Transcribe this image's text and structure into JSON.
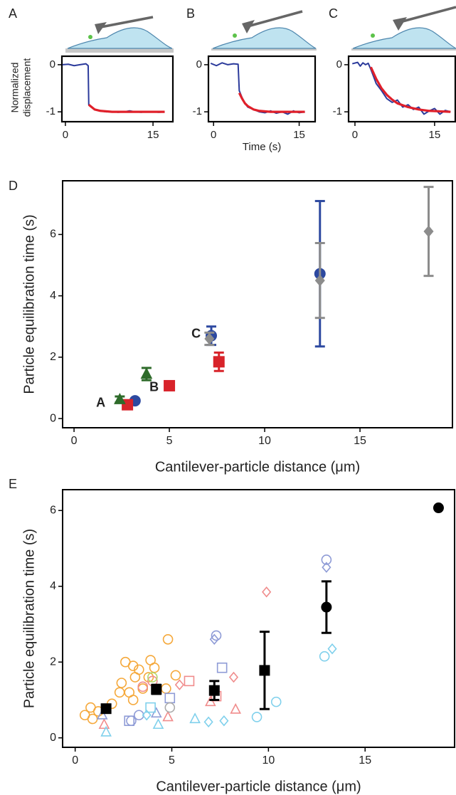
{
  "chart_data": [
    {
      "type": "line",
      "panel_label": "A",
      "ylabel_lines": [
        "Normalized",
        "displacement"
      ],
      "xlim": [
        -0.6,
        18.4
      ],
      "ylim": [
        -1.21,
        0.18
      ],
      "xticks": [
        0,
        15
      ],
      "yticks": [
        0,
        -1
      ],
      "series": [
        {
          "color": "#2b3a9b",
          "x": [
            -0.5,
            0.5,
            1.5,
            2.5,
            3.5,
            3.9,
            4.0,
            5,
            6,
            7,
            8,
            9,
            10,
            11,
            12,
            13,
            14,
            15,
            16,
            17
          ],
          "values": [
            0,
            0.01,
            -0.02,
            0,
            0.02,
            -0.02,
            -0.85,
            -0.95,
            -0.98,
            -1,
            -0.99,
            -1.01,
            -1,
            -0.98,
            -1,
            -1.01,
            -0.99,
            -1,
            -1.01,
            -1
          ]
        },
        {
          "color": "#e0202a",
          "x": [
            4,
            5,
            6,
            8,
            10,
            12,
            14,
            16,
            17
          ],
          "values": [
            -0.85,
            -0.95,
            -0.98,
            -1,
            -1,
            -1,
            -1,
            -1,
            -1
          ]
        }
      ]
    },
    {
      "type": "line",
      "panel_label": "B",
      "xlabel": "Time (s)",
      "xlim": [
        -0.9,
        17.8
      ],
      "ylim": [
        -1.21,
        0.18
      ],
      "xticks": [
        0,
        15
      ],
      "yticks": [
        0,
        -1
      ],
      "series": [
        {
          "color": "#2b3a9b",
          "x": [
            -0.5,
            0.5,
            1.5,
            2.5,
            3.5,
            4.3,
            4.5,
            5,
            5.5,
            6,
            7,
            8,
            9,
            10,
            11,
            12,
            13,
            14,
            15,
            16
          ],
          "values": [
            0.03,
            -0.02,
            0.04,
            0,
            0.02,
            0.01,
            -0.55,
            -0.7,
            -0.82,
            -0.9,
            -0.95,
            -1,
            -1.02,
            -0.98,
            -1.03,
            -1,
            -1.05,
            -0.98,
            -1.02,
            -1
          ]
        },
        {
          "color": "#e0202a",
          "x": [
            4.5,
            5,
            5.5,
            6,
            7,
            8,
            10,
            12,
            14,
            16
          ],
          "values": [
            -0.6,
            -0.72,
            -0.82,
            -0.88,
            -0.95,
            -0.98,
            -1,
            -1,
            -1,
            -1
          ]
        }
      ]
    },
    {
      "type": "line",
      "panel_label": "C",
      "xlim": [
        -1.2,
        18.9
      ],
      "ylim": [
        -1.21,
        0.18
      ],
      "xticks": [
        0,
        15
      ],
      "yticks": [
        0,
        -1
      ],
      "series": [
        {
          "color": "#2b3a9b",
          "x": [
            -0.5,
            0.5,
            1,
            1.5,
            2,
            2.5,
            3,
            3.5,
            4,
            5,
            6,
            7,
            8,
            9,
            10,
            11,
            12,
            13,
            14,
            15,
            16,
            17,
            18
          ],
          "values": [
            0.02,
            0.05,
            -0.03,
            0.04,
            0,
            0.03,
            -0.1,
            -0.25,
            -0.4,
            -0.55,
            -0.72,
            -0.8,
            -0.75,
            -0.9,
            -0.85,
            -0.95,
            -0.9,
            -1.05,
            -0.98,
            -0.93,
            -1.05,
            -0.97,
            -1
          ]
        },
        {
          "color": "#e0202a",
          "x": [
            3,
            4,
            5,
            6,
            7,
            8,
            10,
            12,
            14,
            16,
            18
          ],
          "values": [
            -0.05,
            -0.3,
            -0.5,
            -0.64,
            -0.74,
            -0.82,
            -0.9,
            -0.95,
            -0.98,
            -0.99,
            -1
          ]
        }
      ]
    },
    {
      "type": "scatter",
      "panel_label": "D",
      "xlabel": "Cantilever-particle distance (μm)",
      "ylabel": "Particle equilibration time (s)",
      "xlim": [
        -0.6,
        19.85
      ],
      "ylim": [
        -0.3,
        7.75
      ],
      "xticks": [
        0,
        5,
        10,
        15
      ],
      "yticks": [
        0,
        2,
        4,
        6
      ],
      "annotations": [
        {
          "text": "A",
          "x": 1.4,
          "y": 0.5
        },
        {
          "text": "B",
          "x": 4.2,
          "y": 1.0
        },
        {
          "text": "C",
          "x": 6.4,
          "y": 2.75
        }
      ],
      "series": [
        {
          "color": "#2d49a0",
          "marker": "circle",
          "filled": true,
          "x": [
            3.2,
            7.2,
            12.9
          ],
          "values": [
            0.58,
            2.7,
            4.72
          ],
          "errors": [
            null,
            0.3,
            2.37
          ]
        },
        {
          "color": "#d8232a",
          "marker": "square",
          "filled": true,
          "x": [
            2.8,
            5.0,
            7.6
          ],
          "values": [
            0.45,
            1.07,
            1.85
          ],
          "errors": [
            null,
            null,
            0.3
          ]
        },
        {
          "color": "#2e6b2a",
          "marker": "triangle",
          "filled": true,
          "x": [
            2.4,
            3.8
          ],
          "values": [
            0.62,
            1.45
          ],
          "errors": [
            0.1,
            0.2
          ]
        },
        {
          "color": "#8c8c8c",
          "marker": "diamond",
          "filled": true,
          "x": [
            7.1,
            12.9,
            18.6
          ],
          "values": [
            2.6,
            4.5,
            6.1
          ],
          "errors": [
            0.2,
            1.22,
            1.45
          ]
        }
      ]
    },
    {
      "type": "scatter",
      "panel_label": "E",
      "xlabel": "Cantilever-particle distance (μm)",
      "ylabel": "Particle equilibration time (s)",
      "xlim": [
        -0.65,
        19.63
      ],
      "ylim": [
        -0.25,
        6.55
      ],
      "xticks": [
        0,
        5,
        10,
        15
      ],
      "yticks": [
        0,
        2,
        4,
        6
      ],
      "series": [
        {
          "color": "#f5a83a",
          "marker": "circle",
          "filled": false,
          "x": [
            0.5,
            0.8,
            0.9,
            1.2,
            1.9,
            2.3,
            2.4,
            2.6,
            2.8,
            3.0,
            3.0,
            3.1,
            3.3,
            3.5,
            3.8,
            3.9,
            4.1,
            4.8,
            5.2,
            4.7
          ],
          "values": [
            0.6,
            0.8,
            0.5,
            0.7,
            0.9,
            1.2,
            1.45,
            2.0,
            1.2,
            1.0,
            1.9,
            1.6,
            1.8,
            1.3,
            1.6,
            2.05,
            1.85,
            2.6,
            1.65,
            1.3
          ]
        },
        {
          "color": "#f08c8c",
          "marker": "circle",
          "filled": false,
          "x": [
            3.5,
            4.0
          ],
          "values": [
            1.35,
            1.5
          ]
        },
        {
          "color": "#f08c8c",
          "marker": "square",
          "filled": false,
          "x": [
            5.9,
            7.3
          ],
          "values": [
            1.5,
            1.1
          ]
        },
        {
          "color": "#f08c8c",
          "marker": "triangle",
          "filled": false,
          "x": [
            1.5,
            4.8,
            7.0,
            8.3
          ],
          "values": [
            0.35,
            0.55,
            0.95,
            0.75
          ]
        },
        {
          "color": "#f08c8c",
          "marker": "diamond",
          "filled": false,
          "x": [
            5.4,
            8.2,
            9.9
          ],
          "values": [
            1.4,
            1.6,
            3.85
          ]
        },
        {
          "color": "#8e9bd6",
          "marker": "circle",
          "filled": false,
          "x": [
            7.3,
            13.0,
            2.9,
            3.3
          ],
          "values": [
            2.7,
            4.7,
            0.45,
            0.6
          ]
        },
        {
          "color": "#8e9bd6",
          "marker": "square",
          "filled": false,
          "x": [
            2.8,
            4.9,
            7.6
          ],
          "values": [
            0.45,
            1.05,
            1.85
          ]
        },
        {
          "color": "#8e9bd6",
          "marker": "triangle",
          "filled": false,
          "x": [
            1.4,
            4.2
          ],
          "values": [
            0.6,
            0.65
          ]
        },
        {
          "color": "#8e9bd6",
          "marker": "diamond",
          "filled": false,
          "x": [
            7.2,
            13.0
          ],
          "values": [
            2.6,
            4.5
          ]
        },
        {
          "color": "#7fd0ec",
          "marker": "circle",
          "filled": false,
          "x": [
            9.4,
            10.4,
            12.9
          ],
          "values": [
            0.55,
            0.95,
            2.15
          ]
        },
        {
          "color": "#7fd0ec",
          "marker": "square",
          "filled": false,
          "x": [
            3.9
          ],
          "values": [
            0.8
          ]
        },
        {
          "color": "#7fd0ec",
          "marker": "triangle",
          "filled": false,
          "x": [
            1.6,
            4.3,
            6.2
          ],
          "values": [
            0.15,
            0.35,
            0.5
          ]
        },
        {
          "color": "#7fd0ec",
          "marker": "diamond",
          "filled": false,
          "x": [
            3.7,
            6.9,
            7.7,
            13.3
          ],
          "values": [
            0.6,
            0.42,
            0.45,
            2.35
          ]
        },
        {
          "color": "#aaaaaa",
          "marker": "circle",
          "filled": false,
          "x": [
            4.9
          ],
          "values": [
            0.8
          ]
        },
        {
          "color": "#b5d86a",
          "marker": "circle",
          "filled": false,
          "x": [
            4.0
          ],
          "values": [
            1.6
          ]
        },
        {
          "color": "#000000",
          "marker": "square",
          "filled": true,
          "x": [
            1.6,
            4.2,
            7.2,
            9.8
          ],
          "values": [
            0.77,
            1.28,
            1.25,
            1.78
          ],
          "errors": [
            0.1,
            0.12,
            0.25,
            1.02
          ]
        },
        {
          "color": "#000000",
          "marker": "circle",
          "filled": true,
          "x": [
            13.0,
            18.8
          ],
          "values": [
            3.45,
            6.07
          ],
          "errors": [
            0.68,
            null
          ]
        }
      ]
    }
  ]
}
